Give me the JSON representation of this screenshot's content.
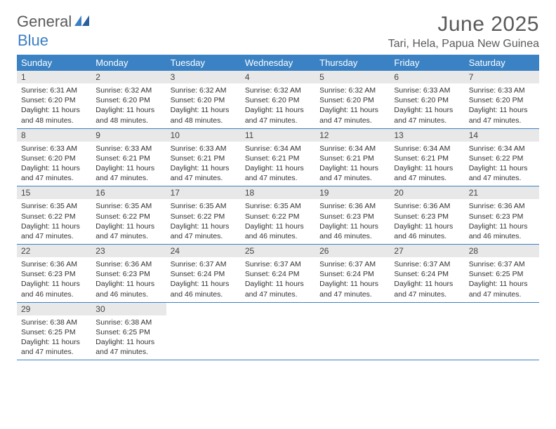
{
  "logo": {
    "text1": "General",
    "text2": "Blue"
  },
  "title": "June 2025",
  "location": "Tari, Hela, Papua New Guinea",
  "colors": {
    "header_bg": "#3b82c4",
    "header_text": "#ffffff",
    "daynum_bg": "#e8e8e8",
    "border": "#3b82c4",
    "logo_gray": "#5a5a5a",
    "logo_blue": "#3b7fc4"
  },
  "weekdays": [
    "Sunday",
    "Monday",
    "Tuesday",
    "Wednesday",
    "Thursday",
    "Friday",
    "Saturday"
  ],
  "days": [
    {
      "n": 1,
      "sunrise": "6:31 AM",
      "sunset": "6:20 PM",
      "dl": "11 hours and 48 minutes."
    },
    {
      "n": 2,
      "sunrise": "6:32 AM",
      "sunset": "6:20 PM",
      "dl": "11 hours and 48 minutes."
    },
    {
      "n": 3,
      "sunrise": "6:32 AM",
      "sunset": "6:20 PM",
      "dl": "11 hours and 48 minutes."
    },
    {
      "n": 4,
      "sunrise": "6:32 AM",
      "sunset": "6:20 PM",
      "dl": "11 hours and 47 minutes."
    },
    {
      "n": 5,
      "sunrise": "6:32 AM",
      "sunset": "6:20 PM",
      "dl": "11 hours and 47 minutes."
    },
    {
      "n": 6,
      "sunrise": "6:33 AM",
      "sunset": "6:20 PM",
      "dl": "11 hours and 47 minutes."
    },
    {
      "n": 7,
      "sunrise": "6:33 AM",
      "sunset": "6:20 PM",
      "dl": "11 hours and 47 minutes."
    },
    {
      "n": 8,
      "sunrise": "6:33 AM",
      "sunset": "6:20 PM",
      "dl": "11 hours and 47 minutes."
    },
    {
      "n": 9,
      "sunrise": "6:33 AM",
      "sunset": "6:21 PM",
      "dl": "11 hours and 47 minutes."
    },
    {
      "n": 10,
      "sunrise": "6:33 AM",
      "sunset": "6:21 PM",
      "dl": "11 hours and 47 minutes."
    },
    {
      "n": 11,
      "sunrise": "6:34 AM",
      "sunset": "6:21 PM",
      "dl": "11 hours and 47 minutes."
    },
    {
      "n": 12,
      "sunrise": "6:34 AM",
      "sunset": "6:21 PM",
      "dl": "11 hours and 47 minutes."
    },
    {
      "n": 13,
      "sunrise": "6:34 AM",
      "sunset": "6:21 PM",
      "dl": "11 hours and 47 minutes."
    },
    {
      "n": 14,
      "sunrise": "6:34 AM",
      "sunset": "6:22 PM",
      "dl": "11 hours and 47 minutes."
    },
    {
      "n": 15,
      "sunrise": "6:35 AM",
      "sunset": "6:22 PM",
      "dl": "11 hours and 47 minutes."
    },
    {
      "n": 16,
      "sunrise": "6:35 AM",
      "sunset": "6:22 PM",
      "dl": "11 hours and 47 minutes."
    },
    {
      "n": 17,
      "sunrise": "6:35 AM",
      "sunset": "6:22 PM",
      "dl": "11 hours and 47 minutes."
    },
    {
      "n": 18,
      "sunrise": "6:35 AM",
      "sunset": "6:22 PM",
      "dl": "11 hours and 46 minutes."
    },
    {
      "n": 19,
      "sunrise": "6:36 AM",
      "sunset": "6:23 PM",
      "dl": "11 hours and 46 minutes."
    },
    {
      "n": 20,
      "sunrise": "6:36 AM",
      "sunset": "6:23 PM",
      "dl": "11 hours and 46 minutes."
    },
    {
      "n": 21,
      "sunrise": "6:36 AM",
      "sunset": "6:23 PM",
      "dl": "11 hours and 46 minutes."
    },
    {
      "n": 22,
      "sunrise": "6:36 AM",
      "sunset": "6:23 PM",
      "dl": "11 hours and 46 minutes."
    },
    {
      "n": 23,
      "sunrise": "6:36 AM",
      "sunset": "6:23 PM",
      "dl": "11 hours and 46 minutes."
    },
    {
      "n": 24,
      "sunrise": "6:37 AM",
      "sunset": "6:24 PM",
      "dl": "11 hours and 46 minutes."
    },
    {
      "n": 25,
      "sunrise": "6:37 AM",
      "sunset": "6:24 PM",
      "dl": "11 hours and 47 minutes."
    },
    {
      "n": 26,
      "sunrise": "6:37 AM",
      "sunset": "6:24 PM",
      "dl": "11 hours and 47 minutes."
    },
    {
      "n": 27,
      "sunrise": "6:37 AM",
      "sunset": "6:24 PM",
      "dl": "11 hours and 47 minutes."
    },
    {
      "n": 28,
      "sunrise": "6:37 AM",
      "sunset": "6:25 PM",
      "dl": "11 hours and 47 minutes."
    },
    {
      "n": 29,
      "sunrise": "6:38 AM",
      "sunset": "6:25 PM",
      "dl": "11 hours and 47 minutes."
    },
    {
      "n": 30,
      "sunrise": "6:38 AM",
      "sunset": "6:25 PM",
      "dl": "11 hours and 47 minutes."
    }
  ],
  "labels": {
    "sunrise": "Sunrise:",
    "sunset": "Sunset:",
    "daylight": "Daylight:"
  },
  "layout": {
    "columns": 7,
    "first_day_col": 0,
    "total_days": 30,
    "font_body_pt": 10.5,
    "font_header_pt": 13,
    "font_title_pt": 30
  }
}
